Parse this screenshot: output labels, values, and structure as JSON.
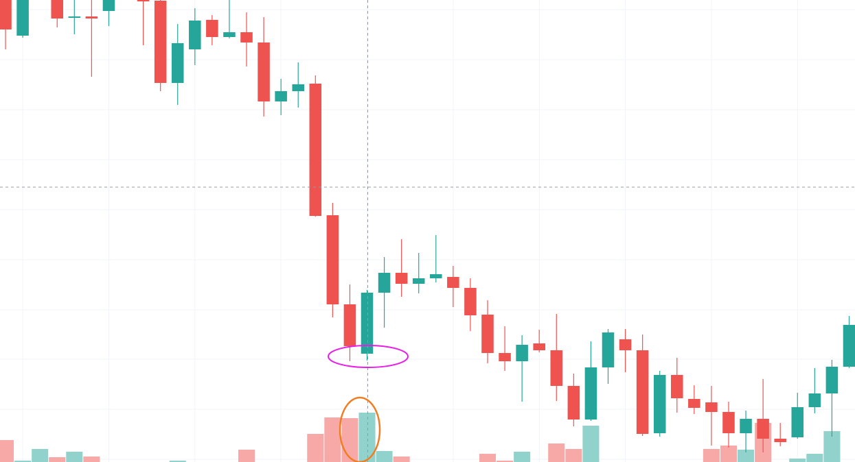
{
  "chart_data": {
    "type": "candlestick",
    "x": [
      0,
      1,
      2,
      3,
      4,
      5,
      6,
      7,
      8,
      9,
      10,
      11,
      12,
      13,
      14,
      15,
      16,
      17,
      18,
      19,
      20,
      21,
      22,
      23,
      24,
      25,
      26,
      27,
      28,
      29,
      30,
      31,
      32,
      33,
      34,
      35,
      36,
      37,
      38,
      39,
      40,
      41,
      42,
      43,
      44,
      45,
      46,
      47,
      48,
      49
    ],
    "xlim": [
      -0.32,
      49.34
    ],
    "ylim": [
      0,
      674
    ],
    "yticks": [
      4,
      77,
      150,
      222,
      295,
      368,
      441,
      514,
      587,
      660
    ],
    "xgrid": [
      1,
      6,
      11,
      16,
      21,
      26,
      31,
      36,
      41,
      46
    ],
    "grid": true,
    "up_color": "#26a69a",
    "down_color": "#ef5350",
    "series": [
      {
        "name": "open",
        "values": [
          674,
          622,
          null,
          674,
          648,
          650,
          658,
          null,
          674,
          673,
          553,
          602,
          645,
          620,
          627,
          612,
          526,
          541,
          552,
          360,
          230,
          158,
          247,
          276,
          260,
          268,
          270,
          254,
          215,
          159,
          147,
          173,
          163,
          111,
          62,
          138,
          179,
          163,
          42,
          127,
          92,
          87,
          73,
          42,
          63,
          34,
          36,
          80,
          100,
          139
        ]
      },
      {
        "name": "high",
        "values": [
          674,
          674,
          null,
          674,
          674,
          674,
          674,
          null,
          674,
          674,
          639,
          662,
          652,
          674,
          656,
          649,
          559,
          583,
          564,
          378,
          259,
          251,
          299,
          325,
          305,
          331,
          286,
          268,
          236,
          198,
          185,
          193,
          216,
          129,
          176,
          194,
          194,
          186,
          133,
          152,
          112,
          111,
          88,
          75,
          121,
          57,
          101,
          137,
          149,
          213
        ]
      },
      {
        "name": "low",
        "values": [
          602,
          619,
          null,
          634,
          624,
          562,
          636,
          null,
          608,
          541,
          521,
          579,
          608,
          618,
          577,
          504,
          506,
          517,
          358,
          211,
          147,
          148,
          196,
          241,
          246,
          262,
          226,
          191,
          144,
          133,
          88,
          160,
          89,
          52,
          60,
          114,
          131,
          38,
          37,
          72,
          70,
          24,
          21,
          14,
          14,
          23,
          34,
          71,
          37,
          137
        ]
      },
      {
        "name": "close",
        "values": [
          631,
          674,
          null,
          647,
          650,
          647,
          674,
          null,
          672,
          553,
          611,
          644,
          620,
          627,
          612,
          526,
          541,
          551,
          359,
          230,
          169,
          247,
          276,
          260,
          268,
          274,
          254,
          214,
          159,
          147,
          171,
          163,
          111,
          62,
          138,
          189,
          163,
          41,
          127,
          93,
          79,
          73,
          42,
          63,
          34,
          29,
          80,
          100,
          139,
          200
        ]
      },
      {
        "name": "volume",
        "axis": "y2",
        "up_color": "#92d2cc",
        "down_color": "#f7a9a7",
        "values": [
          32,
          2,
          19,
          7,
          15,
          8,
          0,
          0,
          0,
          0,
          2,
          0,
          0,
          0,
          18,
          0,
          0,
          0,
          41,
          65,
          64,
          72,
          16,
          8,
          0,
          0,
          0,
          0,
          12,
          2,
          15,
          0,
          27,
          19,
          53,
          0,
          0,
          0,
          0,
          0,
          0,
          19,
          24,
          18,
          57,
          0,
          5,
          12,
          45,
          0
        ]
      }
    ],
    "y2lim": [
      0,
      674
    ]
  }
}
